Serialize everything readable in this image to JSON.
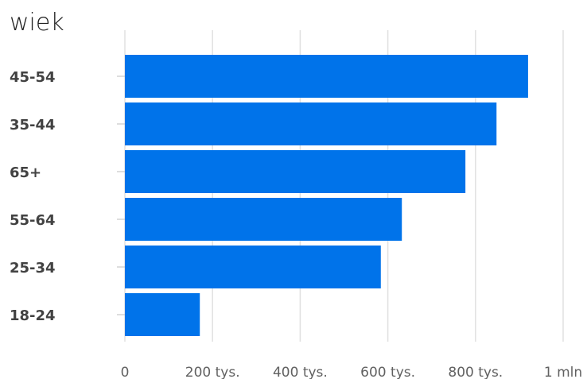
{
  "chart_data": {
    "type": "bar",
    "orientation": "horizontal",
    "title": "wiek",
    "categories": [
      "45-54",
      "35-44",
      "65+",
      "55-64",
      "25-34",
      "18-24"
    ],
    "values": [
      920000,
      848000,
      777000,
      632000,
      584000,
      171000
    ],
    "xlim": [
      0,
      1000000
    ],
    "x_ticks": [
      {
        "value": 0,
        "label": "0"
      },
      {
        "value": 200000,
        "label": "200 tys."
      },
      {
        "value": 400000,
        "label": "400 tys."
      },
      {
        "value": 600000,
        "label": "600 tys."
      },
      {
        "value": 800000,
        "label": "800 tys."
      },
      {
        "value": 1000000,
        "label": "1 mln"
      }
    ],
    "grid": true,
    "bar_color": "#0073ea"
  }
}
